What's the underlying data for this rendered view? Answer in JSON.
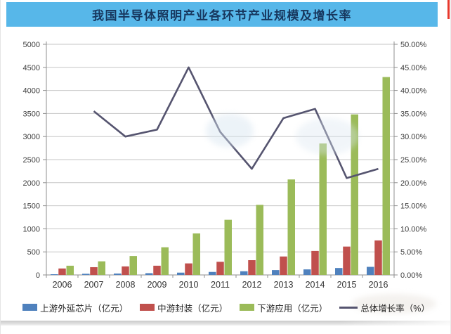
{
  "header": {
    "title": "我国半导体照明产业各环节产业规模及增长率",
    "band_color": "#57B7E9",
    "title_color": "#17375E",
    "accent_color": "#E8392D"
  },
  "chart_data": {
    "type": "bar",
    "subtype": "grouped-bars-with-line-overlay",
    "categories": [
      "2006",
      "2007",
      "2008",
      "2009",
      "2010",
      "2011",
      "2012",
      "2013",
      "2014",
      "2015",
      "2016"
    ],
    "series": [
      {
        "name": "上游外延芯片（亿元）",
        "type": "bar",
        "axis": "left",
        "color": "#4F81BD",
        "values": [
          15,
          25,
          30,
          38,
          50,
          65,
          80,
          105,
          120,
          150,
          175
        ]
      },
      {
        "name": "中游封装（亿元）",
        "type": "bar",
        "axis": "left",
        "color": "#C0504D",
        "values": [
          140,
          168,
          185,
          200,
          250,
          285,
          320,
          400,
          520,
          615,
          748
        ]
      },
      {
        "name": "下游应用（亿元）",
        "type": "bar",
        "axis": "left",
        "color": "#9BBB59",
        "values": [
          200,
          295,
          410,
          600,
          900,
          1195,
          1520,
          2070,
          2850,
          3480,
          4290
        ]
      },
      {
        "name": "总体增长率（%）",
        "type": "line",
        "axis": "right",
        "color": "#55546F",
        "values": [
          null,
          35.5,
          30,
          31.5,
          45,
          31,
          23,
          34,
          36,
          21,
          23
        ]
      }
    ],
    "left_axis": {
      "min": 0,
      "max": 5000,
      "step": 500,
      "ticks": [
        "0",
        "500",
        "1000",
        "1500",
        "2000",
        "2500",
        "3000",
        "3500",
        "4000",
        "4500",
        "5000"
      ]
    },
    "right_axis": {
      "min": 0,
      "max": 50,
      "step": 5,
      "ticks": [
        "0.00%",
        "5.00%",
        "10.00%",
        "15.00%",
        "20.00%",
        "25.00%",
        "30.00%",
        "35.00%",
        "40.00%",
        "45.00%",
        "50.00%"
      ]
    },
    "grid": true,
    "legend_position": "bottom",
    "axis_text_color": "#3F3F3F",
    "grid_color": "#C6C6C6"
  }
}
